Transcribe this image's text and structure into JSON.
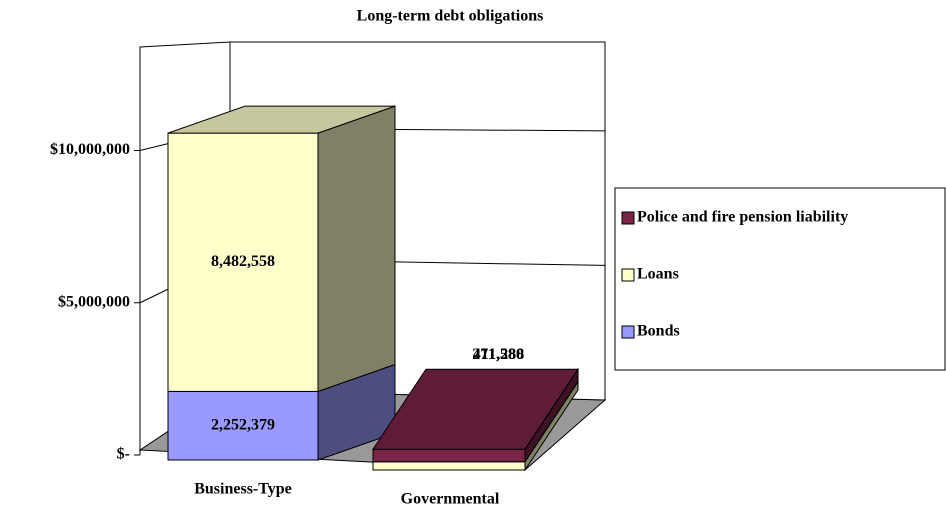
{
  "chart_data": {
    "type": "bar3d_stacked",
    "title": "Long-term debt obligations",
    "categories": [
      "Business-Type",
      "Governmental"
    ],
    "series": [
      {
        "name": "Bonds",
        "color": "#9999ff",
        "values": [
          2252379,
          null
        ],
        "value_labels": [
          "2,252,379",
          null
        ]
      },
      {
        "name": "Loans",
        "color": "#ffffcc",
        "values": [
          8482558,
          271288
        ],
        "value_labels": [
          "8,482,558",
          "271,288"
        ]
      },
      {
        "name": "Police and fire pension liability",
        "color": "#7a2448",
        "values": [
          null,
          411580
        ],
        "value_labels": [
          null,
          "411,580"
        ]
      }
    ],
    "ylim": [
      0,
      13300000
    ],
    "yticks": [
      {
        "value": 0,
        "label": "$-"
      },
      {
        "value": 5000000,
        "label": "$5,000,000"
      },
      {
        "value": 10000000,
        "label": "$10,000,000"
      }
    ],
    "grid": true,
    "legend": "right"
  }
}
